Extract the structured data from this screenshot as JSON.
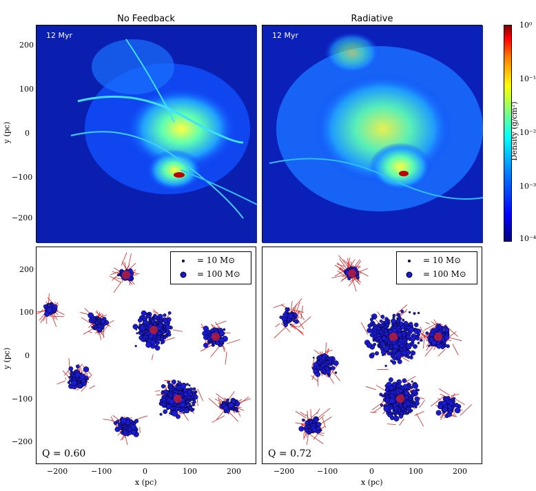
{
  "columns": [
    {
      "title": "No Feedback",
      "time": "12 Myr",
      "q_label": "Q = 0.60"
    },
    {
      "title": "Radiative",
      "time": "12 Myr",
      "q_label": "Q = 0.72"
    }
  ],
  "y_ticks": [
    "200",
    "100",
    "0",
    "−100",
    "−200"
  ],
  "x_ticks": [
    "−200",
    "−100",
    "0",
    "100",
    "200"
  ],
  "y_axis_label": "y  (pc)",
  "x_axis_label": "x  (pc)",
  "legend": {
    "small": "= 10 M⊙",
    "large": "= 100 M⊙"
  },
  "colorbar": {
    "label": "Density  (g/cm²)",
    "ticks": [
      "10⁰",
      "10⁻¹",
      "10⁻²",
      "10⁻³",
      "10⁻⁴"
    ],
    "colors": [
      "#00007f",
      "#0000ff",
      "#00ffff",
      "#ffff00",
      "#ff0000",
      "#800000"
    ]
  },
  "colors": {
    "star_fill": "#1a1ad6",
    "tree_line": "#e02020",
    "sim_bg": "#06107a"
  }
}
